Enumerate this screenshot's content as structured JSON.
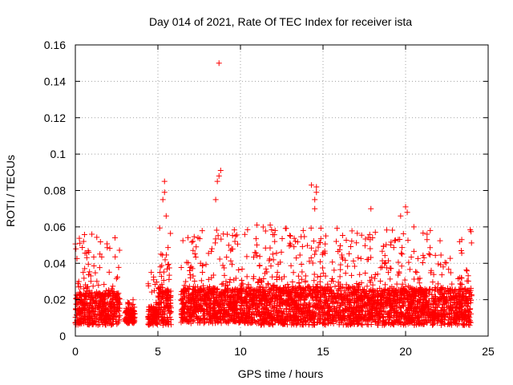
{
  "chart_data": {
    "type": "scatter",
    "title": "Day 014 of 2021, Rate Of TEC Index for receiver ista",
    "xlabel": "GPS time / hours",
    "ylabel": "ROTI / TECUs",
    "xlim": [
      0,
      25
    ],
    "ylim": [
      0,
      0.16
    ],
    "x_ticks": [
      0,
      5,
      10,
      15,
      20,
      25
    ],
    "x_tick_labels": [
      "0",
      "5",
      "10",
      "15",
      "20",
      "25"
    ],
    "y_ticks": [
      0,
      0.02,
      0.04,
      0.06,
      0.08,
      0.1,
      0.12,
      0.14,
      0.16
    ],
    "y_tick_labels": [
      "0",
      "0.02",
      "0.04",
      "0.06",
      "0.08",
      "0.1",
      "0.12",
      "0.14",
      "0.16"
    ],
    "grid": true,
    "marker": "+",
    "series_color": "#ff0000",
    "dense_segments": [
      {
        "x_start": 0.0,
        "x_end": 2.7,
        "y_base": [
          0.006,
          0.024
        ],
        "y_peak": 0.056
      },
      {
        "x_start": 3.0,
        "x_end": 3.6,
        "y_base": [
          0.007,
          0.014
        ],
        "y_peak": 0.02
      },
      {
        "x_start": 4.4,
        "x_end": 5.0,
        "y_base": [
          0.006,
          0.016
        ],
        "y_peak": 0.035
      },
      {
        "x_start": 5.0,
        "x_end": 5.8,
        "y_base": [
          0.006,
          0.025
        ],
        "y_peak": 0.085
      },
      {
        "x_start": 6.4,
        "x_end": 11.0,
        "y_base": [
          0.007,
          0.026
        ],
        "y_peak": 0.09
      },
      {
        "x_start": 11.0,
        "x_end": 17.0,
        "y_base": [
          0.006,
          0.027
        ],
        "y_peak": 0.083
      },
      {
        "x_start": 17.0,
        "x_end": 24.0,
        "y_base": [
          0.006,
          0.026
        ],
        "y_peak": 0.07
      }
    ],
    "peak_points": [
      {
        "x": 8.7,
        "y": 0.15
      },
      {
        "x": 8.8,
        "y": 0.091
      },
      {
        "x": 8.7,
        "y": 0.088
      },
      {
        "x": 8.6,
        "y": 0.085
      },
      {
        "x": 8.5,
        "y": 0.075
      },
      {
        "x": 5.4,
        "y": 0.085
      },
      {
        "x": 5.4,
        "y": 0.079
      },
      {
        "x": 5.3,
        "y": 0.075
      },
      {
        "x": 5.5,
        "y": 0.066
      },
      {
        "x": 14.3,
        "y": 0.083
      },
      {
        "x": 14.6,
        "y": 0.082
      },
      {
        "x": 14.6,
        "y": 0.079
      },
      {
        "x": 14.5,
        "y": 0.075
      },
      {
        "x": 14.5,
        "y": 0.07
      },
      {
        "x": 17.9,
        "y": 0.07
      },
      {
        "x": 20.0,
        "y": 0.071
      },
      {
        "x": 20.1,
        "y": 0.068
      },
      {
        "x": 19.7,
        "y": 0.066
      },
      {
        "x": 20.5,
        "y": 0.06
      },
      {
        "x": 11.0,
        "y": 0.061
      },
      {
        "x": 11.8,
        "y": 0.061
      },
      {
        "x": 12.1,
        "y": 0.058
      },
      {
        "x": 13.8,
        "y": 0.058
      },
      {
        "x": 9.7,
        "y": 0.055
      },
      {
        "x": 18.0,
        "y": 0.054
      },
      {
        "x": 21.3,
        "y": 0.056
      },
      {
        "x": 21.3,
        "y": 0.053
      },
      {
        "x": 23.4,
        "y": 0.053
      },
      {
        "x": 15.8,
        "y": 0.052
      },
      {
        "x": 13.0,
        "y": 0.051
      },
      {
        "x": 1.0,
        "y": 0.056
      },
      {
        "x": 2.4,
        "y": 0.054
      },
      {
        "x": 0.5,
        "y": 0.052
      },
      {
        "x": 4.6,
        "y": 0.035
      }
    ]
  }
}
